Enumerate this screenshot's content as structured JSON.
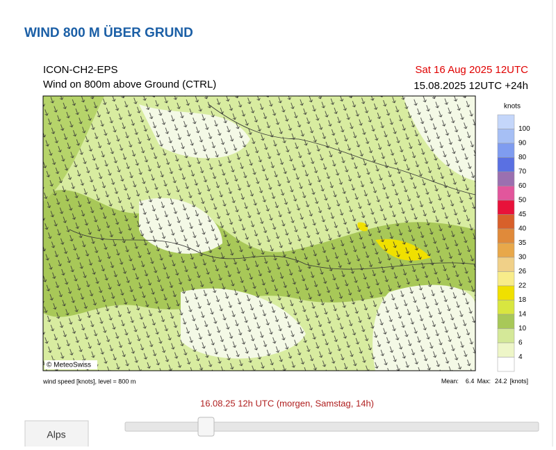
{
  "header": {
    "title": "WIND 800 M ÜBER GRUND"
  },
  "chart": {
    "model": "ICON-CH2-EPS",
    "subtitle": "Wind on 800m above Ground (CTRL)",
    "valid_time": "Sat 16 Aug 2025 12UTC",
    "run_time": "15.08.2025 12UTC +24h",
    "copyright": "© MeteoSwiss",
    "footnote": "wind speed [knots], level = 800 m",
    "stats": {
      "mean_label": "Mean:",
      "mean": 6.4,
      "max_label": "Max:",
      "max": 24.2,
      "unit": "[knots]"
    }
  },
  "colorbar": {
    "unit": "knots",
    "labels": [
      100,
      90,
      80,
      70,
      60,
      50,
      45,
      40,
      35,
      30,
      26,
      22,
      18,
      14,
      10,
      6,
      4
    ],
    "colors": [
      "#c4d6fa",
      "#a6bff5",
      "#7f9cf0",
      "#5a70e2",
      "#9b70b0",
      "#e2569c",
      "#e8123a",
      "#d8602a",
      "#e08a3a",
      "#e8a84a",
      "#f0d088",
      "#f8ec8a",
      "#f0e000",
      "#d8e640",
      "#a8c858",
      "#d4e898",
      "#eef6c8",
      "#ffffff"
    ]
  },
  "timeline": {
    "current": "16.08.25 12h UTC (morgen, Samstag, 14h)"
  },
  "controls": {
    "region_button": "Alps"
  }
}
